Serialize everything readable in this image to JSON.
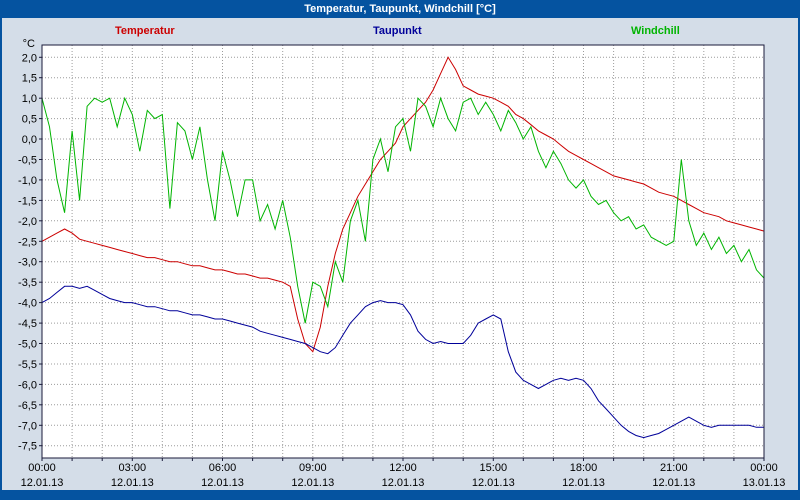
{
  "title_bar": {
    "text": "Temperatur, Taupunkt, Windchill [°C]"
  },
  "legend": {
    "items": [
      {
        "label": "Temperatur",
        "color": "#cc0000"
      },
      {
        "label": "Taupunkt",
        "color": "#000099"
      },
      {
        "label": "Windchill",
        "color": "#00b400"
      }
    ]
  },
  "axes": {
    "y_unit": "°C",
    "y_tick_start": 2.0,
    "y_tick_step": -0.5,
    "y_tick_labels": [
      "2,0",
      "1,5",
      "1,0",
      "0,5",
      "0,0",
      "-0,5",
      "-1,0",
      "-1,5",
      "-2,0",
      "-2,5",
      "-3,0",
      "-3,5",
      "-4,0",
      "-4,5",
      "-5,0",
      "-5,5",
      "-6,0",
      "-6,5",
      "-7,0",
      "-7,5"
    ],
    "x_ticks": [
      {
        "hour": 0,
        "time": "00:00",
        "date": "12.01.13"
      },
      {
        "hour": 3,
        "time": "03:00",
        "date": "12.01.13"
      },
      {
        "hour": 6,
        "time": "06:00",
        "date": "12.01.13"
      },
      {
        "hour": 9,
        "time": "09:00",
        "date": "12.01.13"
      },
      {
        "hour": 12,
        "time": "12:00",
        "date": "12.01.13"
      },
      {
        "hour": 15,
        "time": "15:00",
        "date": "12.01.13"
      },
      {
        "hour": 18,
        "time": "18:00",
        "date": "12.01.13"
      },
      {
        "hour": 21,
        "time": "21:00",
        "date": "12.01.13"
      },
      {
        "hour": 24,
        "time": "00:00",
        "date": "13.01.13"
      }
    ]
  },
  "chart_data": {
    "type": "line",
    "title": "Temperatur, Taupunkt, Windchill [°C]",
    "xlabel": "",
    "ylabel": "°C",
    "grid": "dotted",
    "legend_position": "top",
    "xlim_hours": [
      0,
      24
    ],
    "ylim": [
      -7.8,
      2.3
    ],
    "x_start_hour": 0,
    "x_step_hours": 0.25,
    "series": [
      {
        "name": "Temperatur",
        "color": "#cc0000",
        "values": [
          -2.5,
          -2.4,
          -2.3,
          -2.2,
          -2.3,
          -2.45,
          -2.5,
          -2.55,
          -2.6,
          -2.65,
          -2.7,
          -2.75,
          -2.8,
          -2.85,
          -2.9,
          -2.9,
          -2.95,
          -3.0,
          -3.0,
          -3.05,
          -3.1,
          -3.1,
          -3.15,
          -3.2,
          -3.2,
          -3.25,
          -3.3,
          -3.3,
          -3.35,
          -3.4,
          -3.4,
          -3.45,
          -3.5,
          -3.6,
          -4.4,
          -5.0,
          -5.2,
          -4.6,
          -3.6,
          -2.8,
          -2.2,
          -1.8,
          -1.4,
          -1.1,
          -0.8,
          -0.5,
          -0.3,
          -0.1,
          0.3,
          0.5,
          0.7,
          0.9,
          1.2,
          1.6,
          2.0,
          1.7,
          1.3,
          1.2,
          1.1,
          1.05,
          1.0,
          0.9,
          0.8,
          0.6,
          0.5,
          0.35,
          0.2,
          0.1,
          0.0,
          -0.15,
          -0.3,
          -0.4,
          -0.5,
          -0.6,
          -0.7,
          -0.8,
          -0.9,
          -0.95,
          -1.0,
          -1.05,
          -1.1,
          -1.2,
          -1.3,
          -1.35,
          -1.4,
          -1.5,
          -1.6,
          -1.7,
          -1.8,
          -1.85,
          -1.9,
          -2.0,
          -2.05,
          -2.1,
          -2.15,
          -2.2,
          -2.25
        ]
      },
      {
        "name": "Taupunkt",
        "color": "#000099",
        "values": [
          -4.0,
          -3.9,
          -3.75,
          -3.6,
          -3.6,
          -3.65,
          -3.6,
          -3.7,
          -3.8,
          -3.9,
          -3.95,
          -4.0,
          -4.0,
          -4.05,
          -4.1,
          -4.1,
          -4.15,
          -4.2,
          -4.2,
          -4.25,
          -4.3,
          -4.3,
          -4.35,
          -4.4,
          -4.4,
          -4.45,
          -4.5,
          -4.55,
          -4.6,
          -4.7,
          -4.75,
          -4.8,
          -4.85,
          -4.9,
          -4.95,
          -5.0,
          -5.1,
          -5.2,
          -5.25,
          -5.1,
          -4.8,
          -4.5,
          -4.3,
          -4.1,
          -4.0,
          -3.95,
          -4.0,
          -4.0,
          -4.05,
          -4.3,
          -4.7,
          -4.9,
          -5.0,
          -4.95,
          -5.0,
          -5.0,
          -5.0,
          -4.8,
          -4.5,
          -4.4,
          -4.3,
          -4.4,
          -5.2,
          -5.7,
          -5.9,
          -6.0,
          -6.1,
          -6.0,
          -5.9,
          -5.85,
          -5.9,
          -5.85,
          -5.9,
          -6.1,
          -6.4,
          -6.6,
          -6.8,
          -7.0,
          -7.15,
          -7.25,
          -7.3,
          -7.25,
          -7.2,
          -7.1,
          -7.0,
          -6.9,
          -6.8,
          -6.9,
          -7.0,
          -7.05,
          -7.0,
          -7.0,
          -7.0,
          -7.0,
          -7.0,
          -7.05,
          -7.05
        ]
      },
      {
        "name": "Windchill",
        "color": "#00b400",
        "values": [
          1.0,
          0.3,
          -1.0,
          -1.8,
          0.2,
          -1.5,
          0.8,
          1.0,
          0.9,
          1.0,
          0.3,
          1.0,
          0.6,
          -0.3,
          0.7,
          0.5,
          0.6,
          -1.7,
          0.4,
          0.2,
          -0.5,
          0.3,
          -1.0,
          -2.0,
          -0.3,
          -1.0,
          -1.9,
          -1.0,
          -1.0,
          -2.0,
          -1.6,
          -2.2,
          -1.5,
          -2.4,
          -3.6,
          -4.5,
          -3.5,
          -3.6,
          -4.1,
          -3.0,
          -3.5,
          -2.0,
          -1.5,
          -2.5,
          -0.5,
          0.0,
          -0.8,
          0.3,
          0.5,
          -0.3,
          1.0,
          0.8,
          0.3,
          1.0,
          0.5,
          0.2,
          0.9,
          1.0,
          0.6,
          0.9,
          0.6,
          0.2,
          0.7,
          0.4,
          0.0,
          0.3,
          -0.3,
          -0.7,
          -0.3,
          -0.6,
          -1.0,
          -1.2,
          -1.0,
          -1.4,
          -1.6,
          -1.5,
          -1.8,
          -2.0,
          -1.9,
          -2.2,
          -2.1,
          -2.4,
          -2.5,
          -2.6,
          -2.5,
          -0.5,
          -2.0,
          -2.6,
          -2.3,
          -2.7,
          -2.4,
          -2.8,
          -2.6,
          -3.0,
          -2.7,
          -3.2,
          -3.4
        ]
      }
    ]
  }
}
